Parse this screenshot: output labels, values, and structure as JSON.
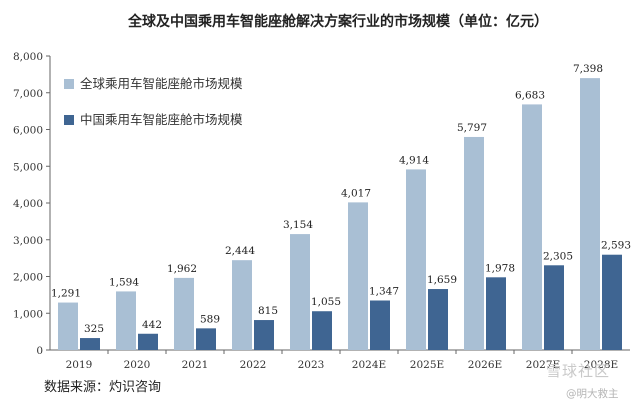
{
  "chart_data": {
    "type": "bar",
    "title": "全球及中国乘用车智能座舱解决方案行业的市场规模（单位：亿元）",
    "categories": [
      "2019",
      "2020",
      "2021",
      "2022",
      "2023",
      "2024E",
      "2025E",
      "2026E",
      "2027E",
      "2028E"
    ],
    "series": [
      {
        "name": "全球乘用车智能座舱市场规模",
        "values": [
          1291,
          1594,
          1962,
          2444,
          3154,
          4017,
          4914,
          5797,
          6683,
          7398
        ],
        "labels": [
          "1,291",
          "1,594",
          "1,962",
          "2,444",
          "3,154",
          "4,017",
          "4,914",
          "5,797",
          "6,683",
          "7,398"
        ],
        "color": "#a9bfd4"
      },
      {
        "name": "中国乘用车智能座舱市场规模",
        "values": [
          325,
          442,
          589,
          815,
          1055,
          1347,
          1659,
          1978,
          2305,
          2593
        ],
        "labels": [
          "325",
          "442",
          "589",
          "815",
          "1,055",
          "1,347",
          "1,659",
          "1,978",
          "2,305",
          "2,593"
        ],
        "color": "#3f6592"
      }
    ],
    "ylim": [
      0,
      8000
    ],
    "yticks": [
      0,
      1000,
      2000,
      3000,
      4000,
      5000,
      6000,
      7000,
      8000
    ],
    "ytick_labels": [
      "0",
      "1,000",
      "2,000",
      "3,000",
      "4,000",
      "5,000",
      "6,000",
      "7,000",
      "8,000"
    ],
    "grid": false,
    "legend_position": "top-left"
  },
  "source": "数据来源：灼识咨询",
  "watermark": {
    "site": "雪球社区",
    "user": "@明大救主"
  }
}
